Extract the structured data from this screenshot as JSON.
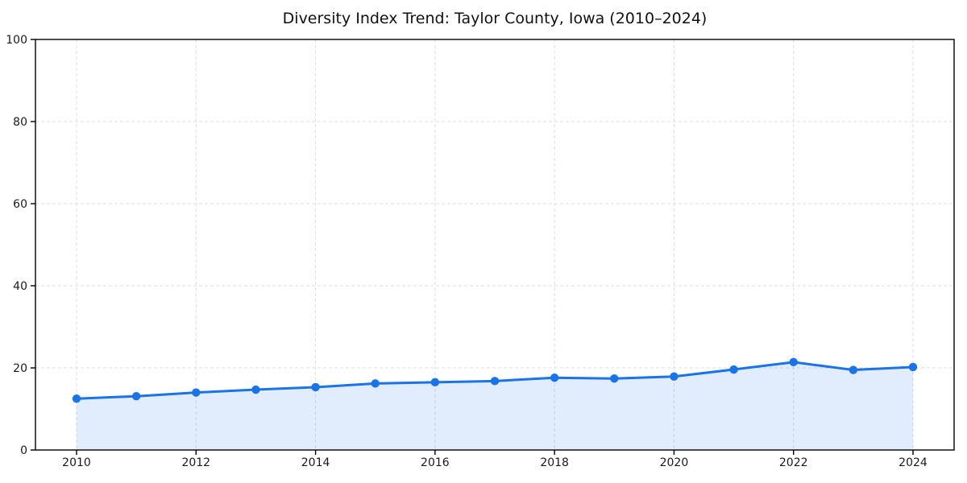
{
  "chart_data": {
    "type": "area",
    "title": "Diversity Index Trend: Taylor County, Iowa (2010–2024)",
    "xlabel": "",
    "ylabel": "",
    "x": [
      2010,
      2011,
      2012,
      2013,
      2014,
      2015,
      2016,
      2017,
      2018,
      2019,
      2020,
      2021,
      2022,
      2023,
      2024
    ],
    "series": [
      {
        "name": "Diversity Index",
        "values": [
          12.5,
          13.1,
          14.0,
          14.7,
          15.3,
          16.2,
          16.5,
          16.8,
          17.6,
          17.4,
          17.9,
          19.6,
          21.4,
          19.5,
          20.2
        ]
      }
    ],
    "ylim": [
      0,
      100
    ],
    "yticks": [
      0,
      20,
      40,
      60,
      80,
      100
    ],
    "xticks": [
      2010,
      2012,
      2014,
      2016,
      2018,
      2020,
      2022,
      2024
    ],
    "grid": true,
    "grid_style": "dashed",
    "legend": false,
    "marker": "circle",
    "colors": {
      "line": "#1a73e8",
      "marker": "#1a73e8",
      "fill_opacity": 0.13,
      "grid": "#dedede",
      "axis": "#000000",
      "text": "#1a1a1a",
      "background": "#ffffff"
    }
  }
}
